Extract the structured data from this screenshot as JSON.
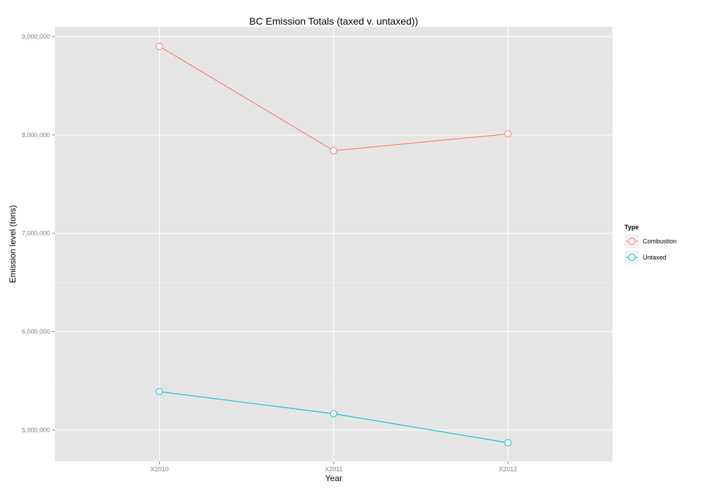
{
  "chart_data": {
    "type": "line",
    "title": "BC Emission Totals (taxed v. untaxed))",
    "xlabel": "Year",
    "ylabel": "Emission level (tons)",
    "categories": [
      "X2010",
      "X2011",
      "X2012"
    ],
    "ylim": [
      4680000,
      9100000
    ],
    "yticks": [
      5000000,
      6000000,
      7000000,
      8000000,
      9000000
    ],
    "ytick_labels": [
      "5,000,000",
      "6,000,000",
      "7,000,000",
      "8,000,000",
      "9,000,000"
    ],
    "grid": true,
    "legend": {
      "title": "Type",
      "position": "right"
    },
    "series": [
      {
        "name": "Combustion",
        "values": [
          8900000,
          7840000,
          8010000
        ],
        "color": "#f8766d"
      },
      {
        "name": "Untaxed",
        "values": [
          5390000,
          5165000,
          4870000
        ],
        "color": "#00bfc4"
      }
    ]
  },
  "colors": {
    "panel_background": "#e5e5e5",
    "grid_major": "#ffffff",
    "grid_minor": "#f2f2f2"
  }
}
